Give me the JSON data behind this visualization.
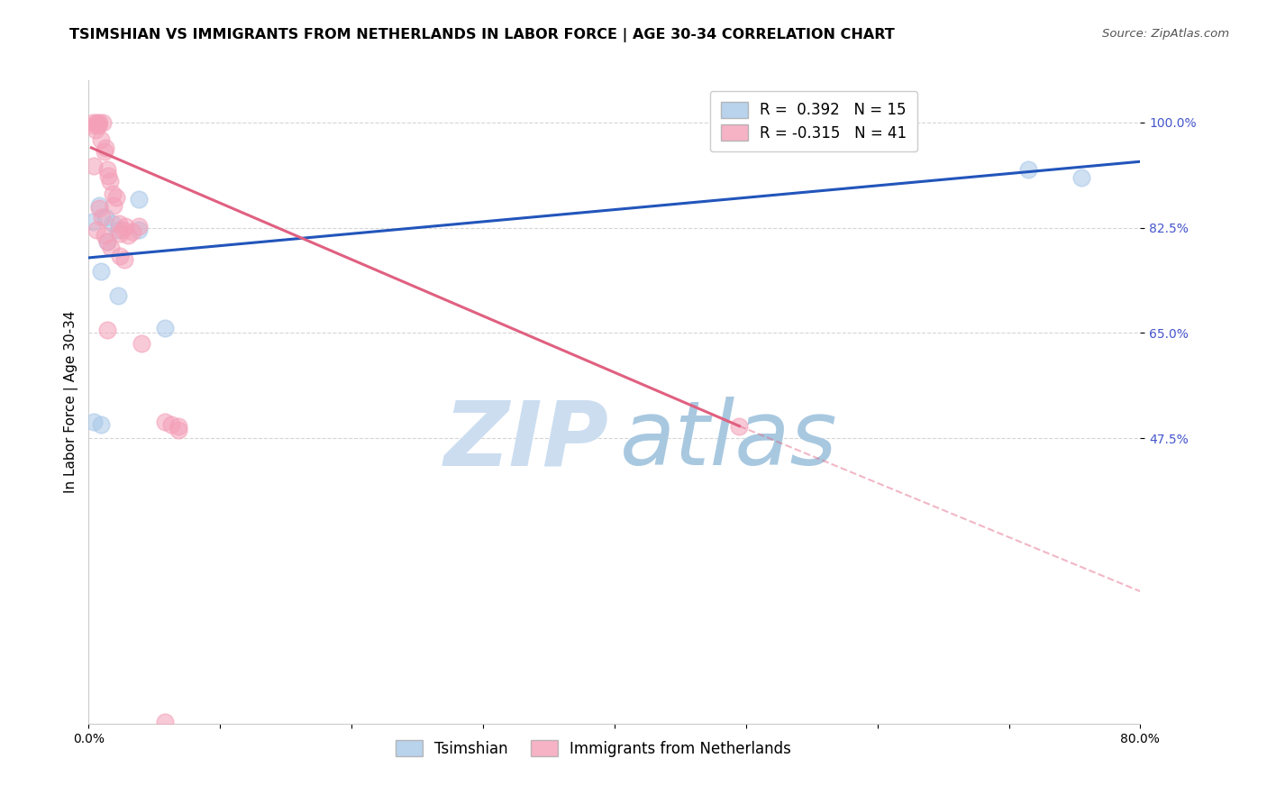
{
  "title": "TSIMSHIAN VS IMMIGRANTS FROM NETHERLANDS IN LABOR FORCE | AGE 30-34 CORRELATION CHART",
  "source": "Source: ZipAtlas.com",
  "ylabel": "In Labor Force | Age 30-34",
  "r_blue": 0.392,
  "n_blue": 15,
  "r_pink": -0.315,
  "n_pink": 41,
  "legend_blue": "Tsimshian",
  "legend_pink": "Immigrants from Netherlands",
  "xlim": [
    0.0,
    0.8
  ],
  "ylim": [
    0.0,
    1.07
  ],
  "yticks": [
    0.475,
    0.65,
    0.825,
    1.0
  ],
  "ytick_labels": [
    "47.5%",
    "65.0%",
    "82.5%",
    "100.0%"
  ],
  "xticks": [
    0.0,
    0.1,
    0.2,
    0.3,
    0.4,
    0.5,
    0.6,
    0.7,
    0.8
  ],
  "xtick_labels": [
    "0.0%",
    "",
    "",
    "",
    "",
    "",
    "",
    "",
    "80.0%"
  ],
  "blue_color": "#a8c8e8",
  "pink_color": "#f4a0b8",
  "blue_line_color": "#2255bb",
  "pink_line_color": "#e06080",
  "blue_scatter_x": [
    0.003,
    0.008,
    0.013,
    0.018,
    0.022,
    0.038,
    0.058,
    0.009,
    0.014,
    0.004,
    0.009,
    0.022,
    0.038,
    0.715,
    0.755
  ],
  "blue_scatter_y": [
    0.835,
    0.862,
    0.842,
    0.832,
    0.822,
    0.822,
    0.658,
    0.752,
    0.802,
    0.502,
    0.498,
    0.712,
    0.872,
    0.922,
    0.908
  ],
  "pink_scatter_x": [
    0.003,
    0.004,
    0.005,
    0.006,
    0.007,
    0.007,
    0.008,
    0.009,
    0.011,
    0.012,
    0.013,
    0.014,
    0.015,
    0.016,
    0.018,
    0.019,
    0.021,
    0.023,
    0.026,
    0.028,
    0.03,
    0.033,
    0.038,
    0.004,
    0.006,
    0.008,
    0.01,
    0.012,
    0.014,
    0.017,
    0.024,
    0.027,
    0.04,
    0.058,
    0.063,
    0.068,
    0.495,
    0.058,
    0.014,
    0.024,
    0.068
  ],
  "pink_scatter_y": [
    1.0,
    0.995,
    0.988,
    1.0,
    0.995,
    0.999,
    1.0,
    0.972,
    1.0,
    0.952,
    0.958,
    0.922,
    0.912,
    0.902,
    0.882,
    0.862,
    0.875,
    0.832,
    0.822,
    0.828,
    0.812,
    0.818,
    0.828,
    0.928,
    0.822,
    0.858,
    0.842,
    0.812,
    0.802,
    0.792,
    0.778,
    0.772,
    0.632,
    0.502,
    0.498,
    0.495,
    0.495,
    0.002,
    0.655,
    0.815,
    0.488
  ],
  "blue_line_x0": 0.0,
  "blue_line_y0": 0.775,
  "blue_line_x1": 0.8,
  "blue_line_y1": 0.935,
  "pink_line_x0": 0.002,
  "pink_line_y0": 0.958,
  "pink_line_x1_solid": 0.495,
  "pink_line_y1_solid": 0.495,
  "pink_line_x1_dash": 0.8,
  "pink_line_y1_dash": 0.22,
  "background_color": "#ffffff",
  "title_fontsize": 11.5,
  "axis_label_fontsize": 11,
  "tick_fontsize": 10,
  "source_fontsize": 9.5,
  "legend_fontsize": 12,
  "watermark_zip_color": "#ccddf0",
  "watermark_atlas_color": "#a8c8e0"
}
